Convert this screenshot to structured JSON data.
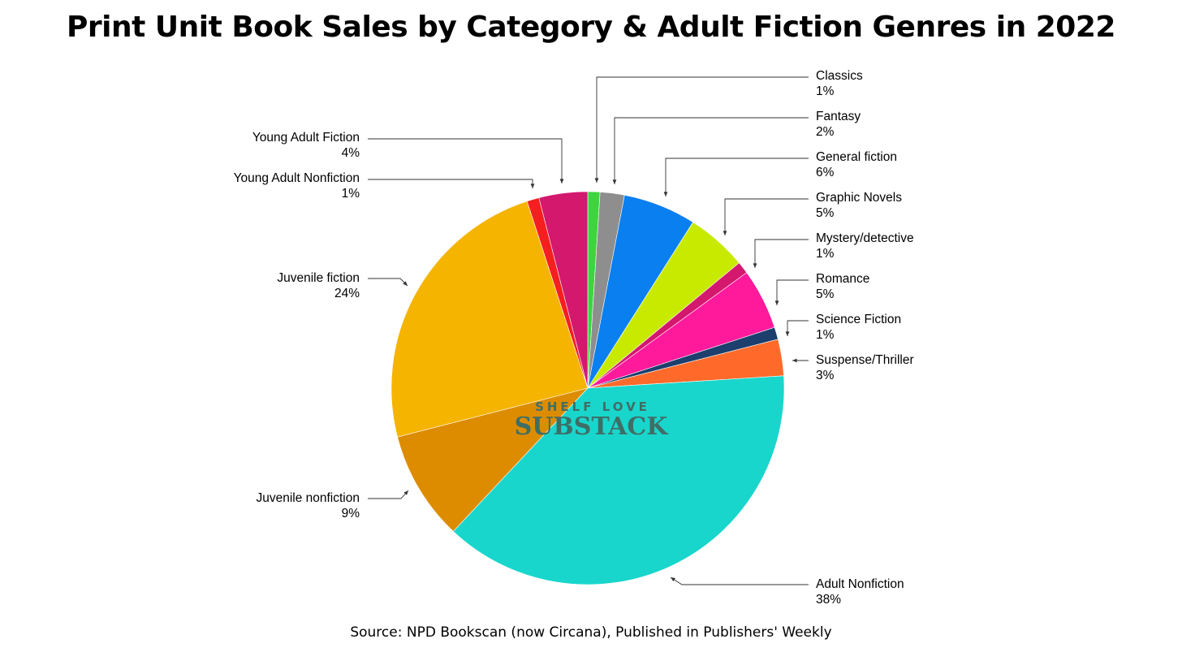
{
  "chart_data": {
    "type": "pie",
    "title": "Print Unit Book Sales by Category & Adult Fiction Genres in 2022",
    "source": "Source: NPD Bookscan (now Circana), Published in Publishers' Weekly",
    "watermark": {
      "line1": "SHELF LOVE",
      "line2": "SUBSTACK"
    },
    "slices": [
      {
        "label": "Classics",
        "value": 1,
        "display": "1%",
        "color": "#3ed43e",
        "side": "right"
      },
      {
        "label": "Fantasy",
        "value": 2,
        "display": "2%",
        "color": "#8e8e8e",
        "side": "right"
      },
      {
        "label": "General fiction",
        "value": 6,
        "display": "6%",
        "color": "#0a7ff0",
        "side": "right"
      },
      {
        "label": "Graphic Novels",
        "value": 5,
        "display": "5%",
        "color": "#c8ea00",
        "side": "right"
      },
      {
        "label": "Mystery/detective",
        "value": 1,
        "display": "1%",
        "color": "#d4186e",
        "side": "right"
      },
      {
        "label": "Romance",
        "value": 5,
        "display": "5%",
        "color": "#ff1a9c",
        "side": "right"
      },
      {
        "label": "Science Fiction",
        "value": 1,
        "display": "1%",
        "color": "#1c3f6e",
        "side": "right"
      },
      {
        "label": "Suspense/Thriller",
        "value": 3,
        "display": "3%",
        "color": "#ff6a2a",
        "side": "right"
      },
      {
        "label": "Adult Nonfiction",
        "value": 38,
        "display": "38%",
        "color": "#19d6cc",
        "side": "right"
      },
      {
        "label": "Juvenile nonfiction",
        "value": 9,
        "display": "9%",
        "color": "#dd8c00",
        "side": "left"
      },
      {
        "label": "Juvenile fiction",
        "value": 24,
        "display": "24%",
        "color": "#f5b400",
        "side": "left"
      },
      {
        "label": "Young Adult Nonfiction",
        "value": 1,
        "display": "1%",
        "color": "#f51f1f",
        "side": "left"
      },
      {
        "label": "Young Adult Fiction",
        "value": 4,
        "display": "4%",
        "color": "#d4186e",
        "side": "left"
      }
    ]
  }
}
